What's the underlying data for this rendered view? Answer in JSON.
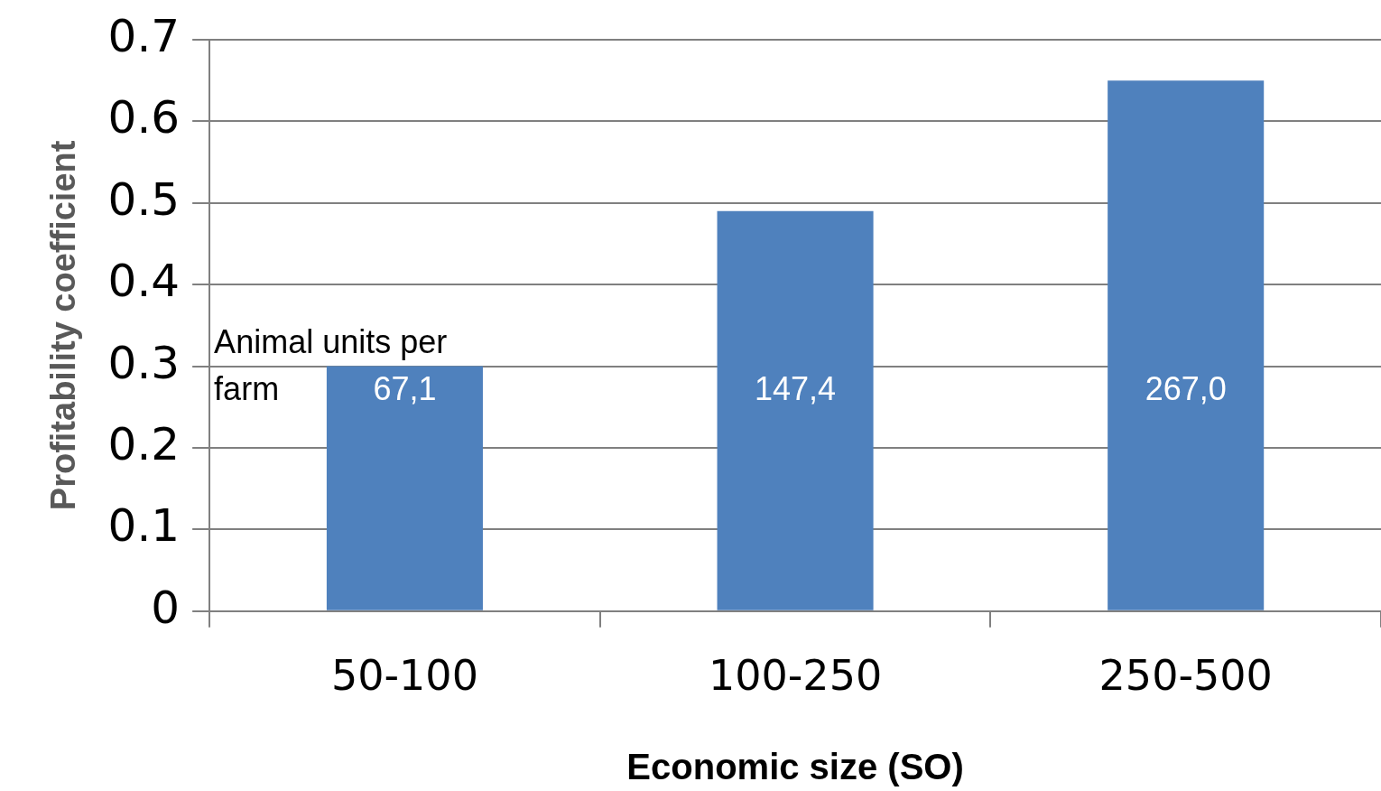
{
  "chart_data": {
    "type": "bar",
    "xlabel": "Economic size (SO)",
    "ylabel": "Profitability coefficient",
    "categories": [
      "50-100",
      "100-250",
      "250-500"
    ],
    "values": [
      0.3,
      0.49,
      0.65
    ],
    "color": "#4f81bd",
    "annotations": [
      "Animal units per farm",
      "67,1",
      "147,4",
      "267,0"
    ],
    "ylim": [
      0,
      0.7
    ],
    "yticks": [
      0,
      0.1,
      0.2,
      0.3,
      0.4,
      0.5,
      0.6,
      0.7
    ],
    "grid": "y",
    "legend": false
  }
}
